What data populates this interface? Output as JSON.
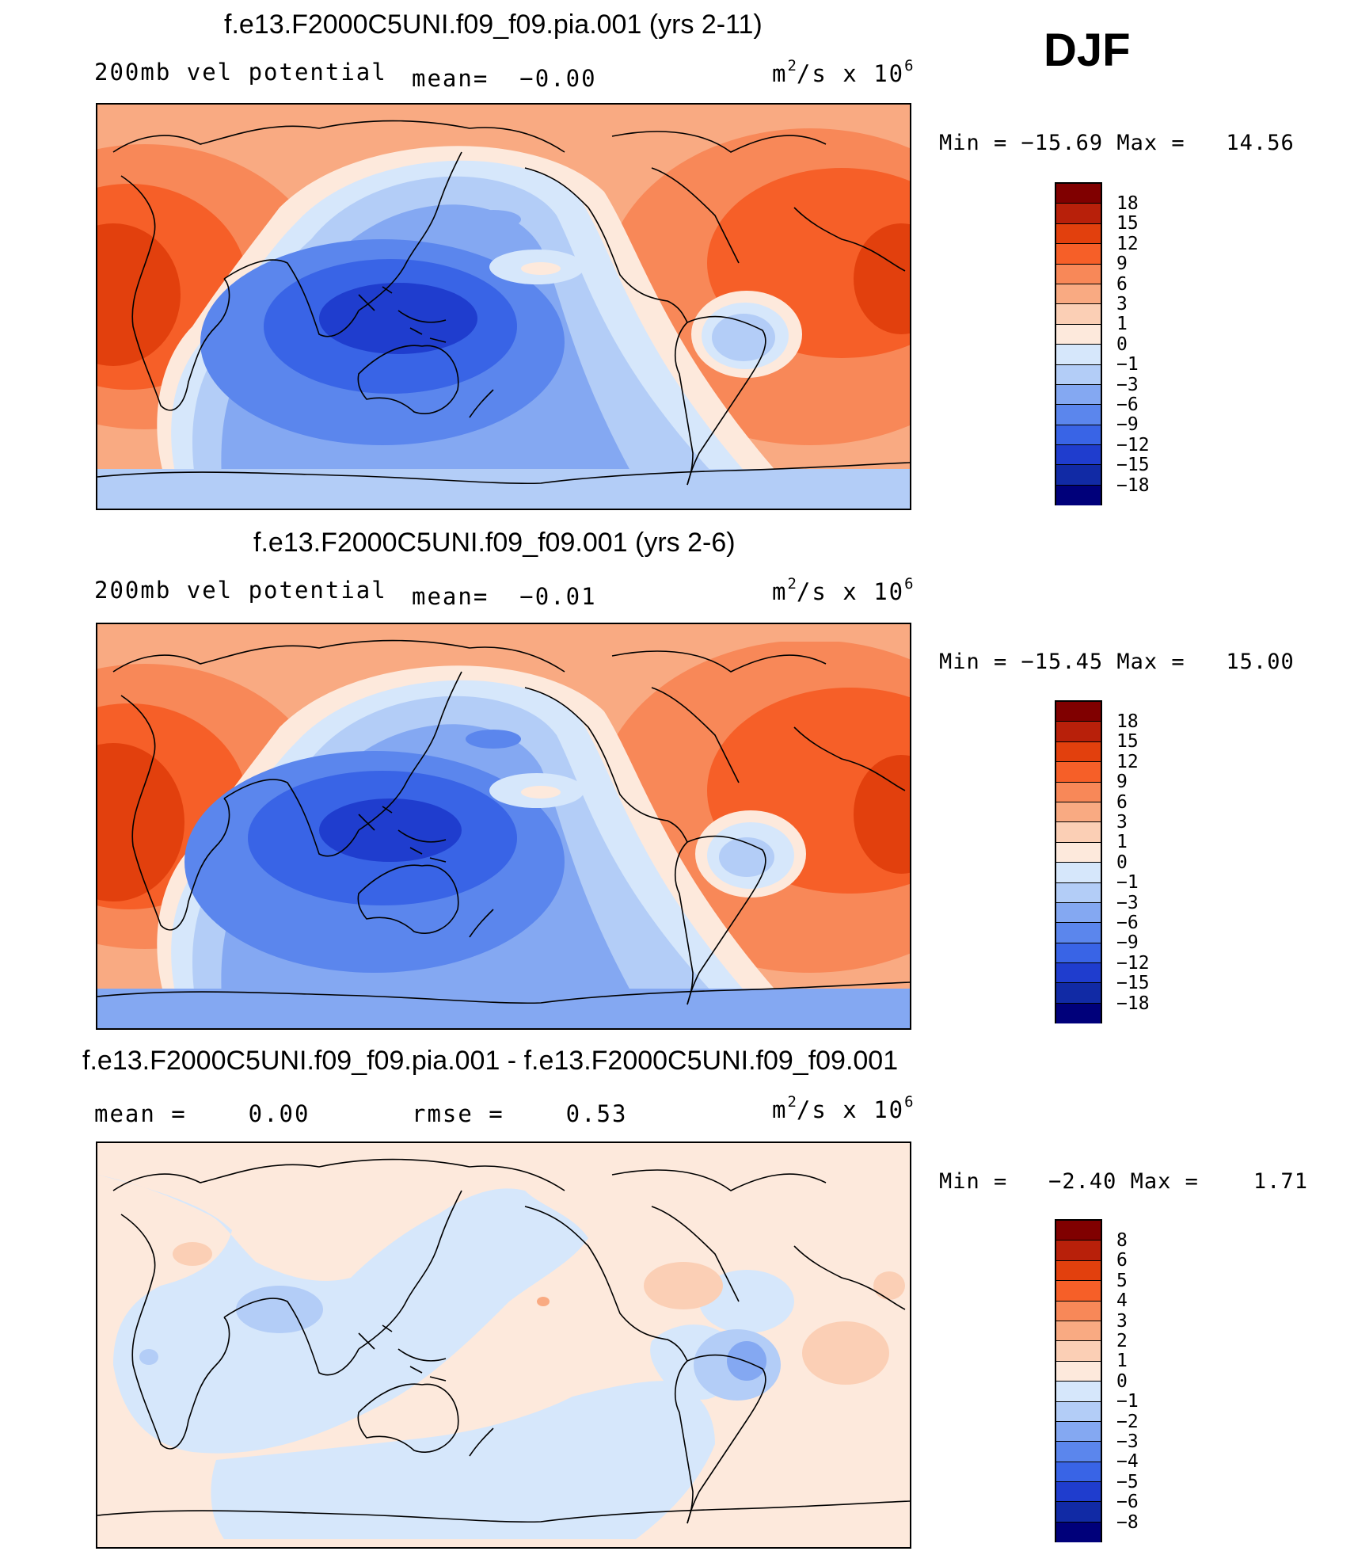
{
  "season": "DJF",
  "panels": [
    {
      "title": "f.e13.F2000C5UNI.f09_f09.pia.001 (yrs 2-11)",
      "left_label": "200mb vel potential",
      "stat_label": "mean=",
      "stat_value": "−0.00",
      "units": "m²/s x 10⁶",
      "units_base": "m",
      "units_exp1": "2",
      "units_mid": "/s x 10",
      "units_exp2": "6",
      "min_label": "Min =",
      "min_value": "−15.69",
      "max_label": "Max =",
      "max_value": "14.56",
      "colorbar": {
        "labels": [
          "18",
          "15",
          "12",
          "9",
          "6",
          "3",
          "1",
          "0",
          "−1",
          "−3",
          "−6",
          "−9",
          "−12",
          "−15",
          "−18"
        ],
        "colors": [
          "#800000",
          "#b8200a",
          "#e2400d",
          "#f65f28",
          "#f88858",
          "#f9aa82",
          "#fbcfb5",
          "#fde9dc",
          "#d6e7fb",
          "#b3cdf7",
          "#84a8f2",
          "#5b86ed",
          "#3964e6",
          "#1f3dce",
          "#112aa5",
          "#00007a"
        ]
      }
    },
    {
      "title": "f.e13.F2000C5UNI.f09_f09.001 (yrs 2-6)",
      "left_label": "200mb vel potential",
      "stat_label": "mean=",
      "stat_value": "−0.01",
      "units": "m²/s x 10⁶",
      "units_base": "m",
      "units_exp1": "2",
      "units_mid": "/s x 10",
      "units_exp2": "6",
      "min_label": "Min =",
      "min_value": "−15.45",
      "max_label": "Max =",
      "max_value": "15.00",
      "colorbar": {
        "labels": [
          "18",
          "15",
          "12",
          "9",
          "6",
          "3",
          "1",
          "0",
          "−1",
          "−3",
          "−6",
          "−9",
          "−12",
          "−15",
          "−18"
        ],
        "colors": [
          "#800000",
          "#b8200a",
          "#e2400d",
          "#f65f28",
          "#f88858",
          "#f9aa82",
          "#fbcfb5",
          "#fde9dc",
          "#d6e7fb",
          "#b3cdf7",
          "#84a8f2",
          "#5b86ed",
          "#3964e6",
          "#1f3dce",
          "#112aa5",
          "#00007a"
        ]
      }
    },
    {
      "title": "f.e13.F2000C5UNI.f09_f09.pia.001 - f.e13.F2000C5UNI.f09_f09.001",
      "left_label": "mean =",
      "left_value": "0.00",
      "stat_label": "rmse =",
      "stat_value": "0.53",
      "units": "m²/s x 10⁶",
      "units_base": "m",
      "units_exp1": "2",
      "units_mid": "/s x 10",
      "units_exp2": "6",
      "min_label": "Min =",
      "min_value": "−2.40",
      "max_label": "Max =",
      "max_value": "1.71",
      "colorbar": {
        "labels": [
          "8",
          "6",
          "5",
          "4",
          "3",
          "2",
          "1",
          "0",
          "−1",
          "−2",
          "−3",
          "−4",
          "−5",
          "−6",
          "−8"
        ],
        "colors": [
          "#800000",
          "#b8200a",
          "#e2400d",
          "#f65f28",
          "#f88858",
          "#f9aa82",
          "#fbcfb5",
          "#fde9dc",
          "#d6e7fb",
          "#b3cdf7",
          "#84a8f2",
          "#5b86ed",
          "#3964e6",
          "#1f3dce",
          "#112aa5",
          "#00007a"
        ]
      }
    }
  ]
}
